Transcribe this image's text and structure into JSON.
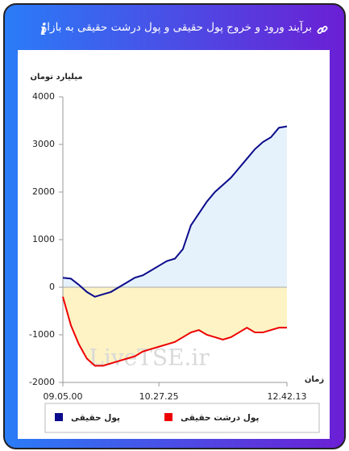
{
  "header": {
    "title": "برآیند ورود و خروج پول حقیقی و پول درشت حقیقی به بازار"
  },
  "chart_data": {
    "type": "line",
    "y_label": "میلیارد تومان",
    "x_label": "زمان",
    "watermark": "LiveTSE.ir",
    "categories": [
      "09.05.00",
      null,
      null,
      null,
      null,
      null,
      null,
      null,
      null,
      null,
      null,
      null,
      "10.27.25",
      null,
      null,
      null,
      null,
      null,
      null,
      null,
      null,
      null,
      null,
      null,
      null,
      null,
      null,
      null,
      "12.42.13"
    ],
    "series": [
      {
        "name": "پول حقیقی",
        "color": "#0a0a8c",
        "fill": "#e6f2fb",
        "values": [
          200,
          180,
          50,
          -100,
          -200,
          -150,
          -100,
          0,
          100,
          200,
          250,
          350,
          450,
          550,
          600,
          800,
          1300,
          1550,
          1800,
          2000,
          2150,
          2300,
          2500,
          2700,
          2900,
          3050,
          3150,
          3350,
          3380
        ]
      },
      {
        "name": "پول درشت حقیقی",
        "color": "#ee0000",
        "fill": "#fdf3c4",
        "values": [
          -200,
          -800,
          -1200,
          -1500,
          -1650,
          -1650,
          -1600,
          -1550,
          -1500,
          -1450,
          -1350,
          -1300,
          -1250,
          -1200,
          -1150,
          -1050,
          -950,
          -900,
          -1000,
          -1050,
          -1100,
          -1050,
          -950,
          -850,
          -950,
          -950,
          -900,
          -850,
          -850
        ]
      }
    ],
    "ylim": [
      -2000,
      4000
    ],
    "yticks": [
      -2000,
      -1000,
      0,
      1000,
      2000,
      3000,
      4000
    ]
  }
}
